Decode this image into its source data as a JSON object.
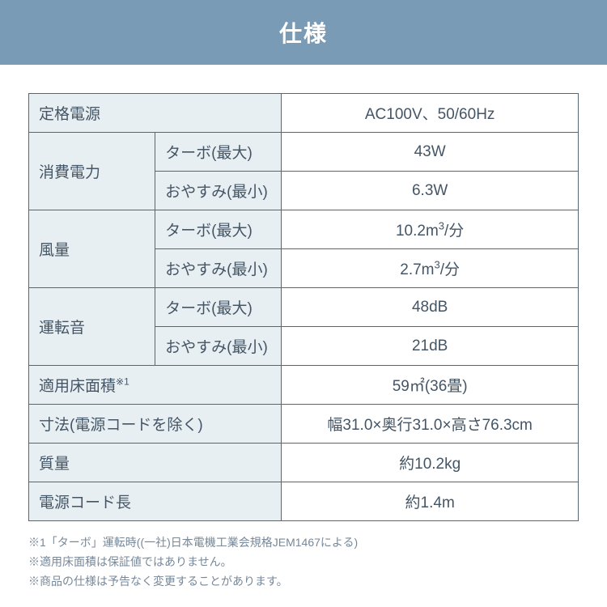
{
  "header": {
    "title": "仕様",
    "background_color": "#7a9bb5",
    "text_color": "#ffffff",
    "font_size": 28
  },
  "table": {
    "border_color": "#556677",
    "label_bg": "#e8eff3",
    "value_bg": "#ffffff",
    "text_color": "#445566",
    "font_size": 19,
    "rows": {
      "power_source": {
        "label": "定格電源",
        "value": "AC100V、50/60Hz"
      },
      "power_consumption": {
        "label": "消費電力",
        "turbo": {
          "sublabel": "ターボ(最大)",
          "value": "43W"
        },
        "sleep": {
          "sublabel": "おやすみ(最小)",
          "value": "6.3W"
        }
      },
      "airflow": {
        "label": "風量",
        "turbo": {
          "sublabel": "ターボ(最大)",
          "value_pre": "10.2m",
          "value_sup": "3",
          "value_post": "/分"
        },
        "sleep": {
          "sublabel": "おやすみ(最小)",
          "value_pre": "2.7m",
          "value_sup": "3",
          "value_post": "/分"
        }
      },
      "noise": {
        "label": "運転音",
        "turbo": {
          "sublabel": "ターボ(最大)",
          "value": "48dB"
        },
        "sleep": {
          "sublabel": "おやすみ(最小)",
          "value": "21dB"
        }
      },
      "floor_area": {
        "label_pre": "適用床面積",
        "label_sup": "※1",
        "value": "59㎡(36畳)"
      },
      "dimensions": {
        "label": "寸法(電源コードを除く)",
        "value": "幅31.0×奥行31.0×高さ76.3cm"
      },
      "weight": {
        "label": "質量",
        "value": "約10.2kg"
      },
      "cord_length": {
        "label": "電源コード長",
        "value": "約1.4m"
      }
    }
  },
  "footnotes": {
    "note1": "※1「ターボ」運転時((一社)日本電機工業会規格JEM1467による)",
    "note2": "※適用床面積は保証値ではありません。",
    "note3": "※商品の仕様は予告なく変更することがあります。",
    "text_color": "#778899",
    "font_size": 14
  }
}
